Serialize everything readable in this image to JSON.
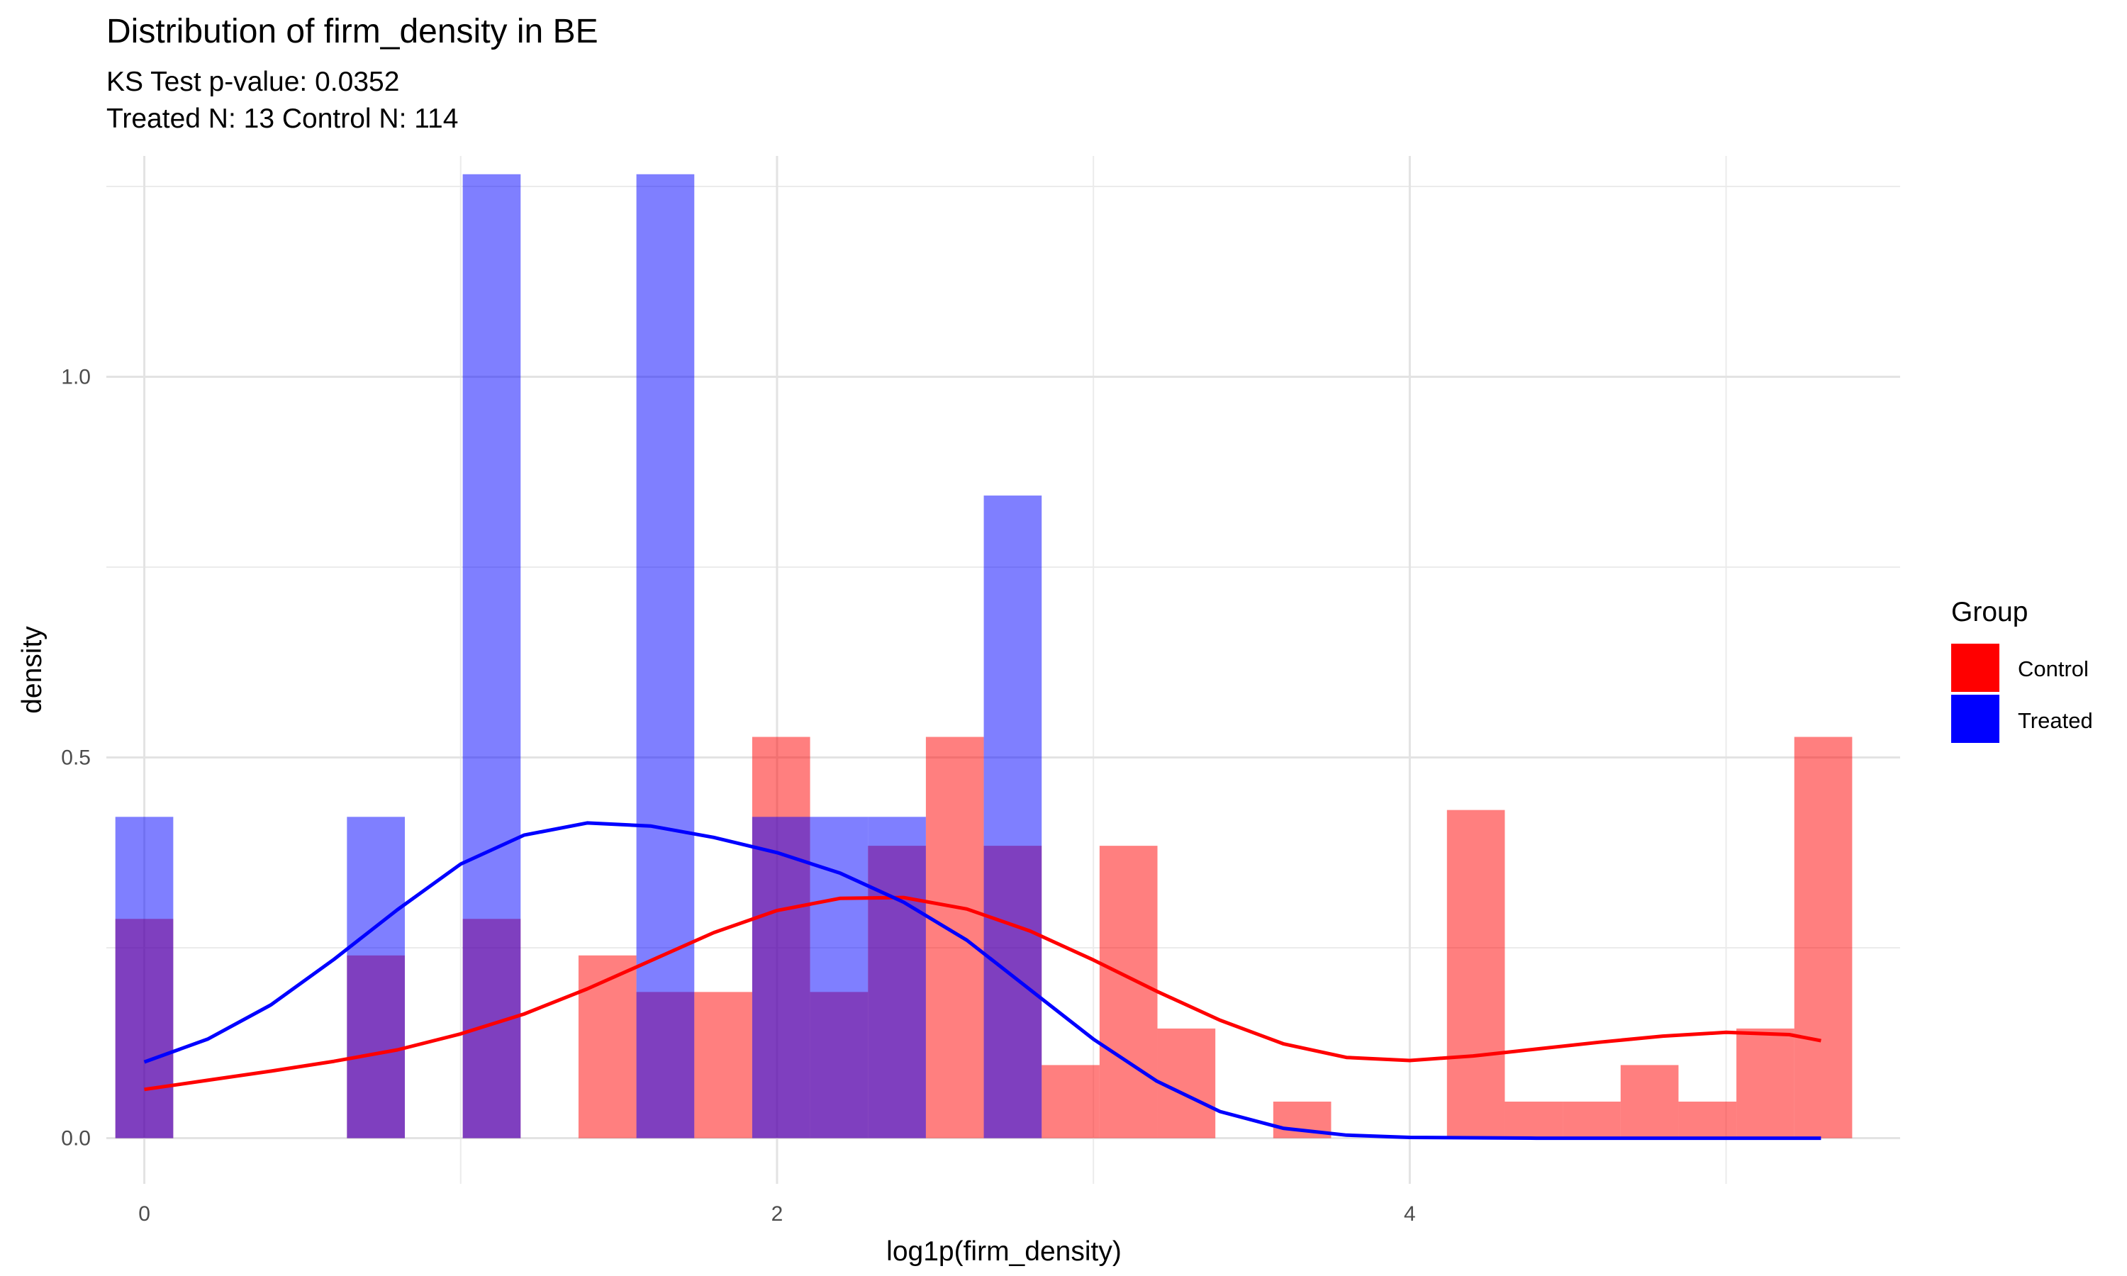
{
  "chart_data": {
    "type": "histogram",
    "title": "Distribution of firm_density in BE",
    "subtitle_lines": [
      "KS Test p-value: 0.0352",
      "Treated N: 13 Control N: 114"
    ],
    "xlabel": "log1p(firm_density)",
    "ylabel": "density",
    "xlim": [
      -0.12,
      5.55
    ],
    "ylim": [
      -0.06,
      1.29
    ],
    "x_ticks": [
      0,
      2,
      4
    ],
    "x_tick_labels": [
      "0",
      "2",
      "4"
    ],
    "y_ticks": [
      0.0,
      0.5,
      1.0
    ],
    "y_tick_labels": [
      "0.0",
      "0.5",
      "1.0"
    ],
    "x_minor_ticks": [
      1,
      3,
      5
    ],
    "y_minor_ticks": [
      0.25,
      0.75,
      1.25
    ],
    "grid": true,
    "bin_width": 0.183,
    "legend": {
      "title": "Group",
      "position": "right",
      "items": [
        {
          "label": "Control",
          "color": "#ff0000"
        },
        {
          "label": "Treated",
          "color": "#0000ff"
        }
      ]
    },
    "series": [
      {
        "name": "Control",
        "color": "#ff0000",
        "bins": [
          {
            "x": 0.0,
            "y": 0.288
          },
          {
            "x": 0.732,
            "y": 0.24
          },
          {
            "x": 1.098,
            "y": 0.288
          },
          {
            "x": 1.464,
            "y": 0.24
          },
          {
            "x": 1.647,
            "y": 0.192
          },
          {
            "x": 1.83,
            "y": 0.192
          },
          {
            "x": 2.013,
            "y": 0.527
          },
          {
            "x": 2.196,
            "y": 0.192
          },
          {
            "x": 2.379,
            "y": 0.384
          },
          {
            "x": 2.562,
            "y": 0.527
          },
          {
            "x": 2.745,
            "y": 0.384
          },
          {
            "x": 2.928,
            "y": 0.096
          },
          {
            "x": 3.111,
            "y": 0.384
          },
          {
            "x": 3.294,
            "y": 0.144
          },
          {
            "x": 3.66,
            "y": 0.048
          },
          {
            "x": 4.209,
            "y": 0.431
          },
          {
            "x": 4.392,
            "y": 0.048
          },
          {
            "x": 4.575,
            "y": 0.048
          },
          {
            "x": 4.758,
            "y": 0.096
          },
          {
            "x": 4.941,
            "y": 0.048
          },
          {
            "x": 5.124,
            "y": 0.144
          },
          {
            "x": 5.307,
            "y": 0.527
          }
        ],
        "density_curve": {
          "x": [
            0.0,
            0.2,
            0.4,
            0.6,
            0.8,
            1.0,
            1.2,
            1.4,
            1.6,
            1.8,
            2.0,
            2.2,
            2.4,
            2.6,
            2.8,
            3.0,
            3.2,
            3.4,
            3.6,
            3.8,
            4.0,
            4.2,
            4.4,
            4.6,
            4.8,
            5.0,
            5.2,
            5.3
          ],
          "y": [
            0.064,
            0.076,
            0.088,
            0.101,
            0.116,
            0.137,
            0.163,
            0.196,
            0.233,
            0.27,
            0.299,
            0.315,
            0.316,
            0.301,
            0.272,
            0.234,
            0.193,
            0.155,
            0.124,
            0.106,
            0.102,
            0.108,
            0.117,
            0.126,
            0.134,
            0.139,
            0.136,
            0.128
          ]
        }
      },
      {
        "name": "Treated",
        "color": "#0000ff",
        "bins": [
          {
            "x": 0.0,
            "y": 0.422
          },
          {
            "x": 0.732,
            "y": 0.422
          },
          {
            "x": 1.098,
            "y": 1.266
          },
          {
            "x": 1.647,
            "y": 1.266
          },
          {
            "x": 2.013,
            "y": 0.422
          },
          {
            "x": 2.196,
            "y": 0.422
          },
          {
            "x": 2.379,
            "y": 0.422
          },
          {
            "x": 2.745,
            "y": 0.844
          }
        ],
        "density_curve": {
          "x": [
            0.0,
            0.2,
            0.4,
            0.6,
            0.8,
            1.0,
            1.2,
            1.4,
            1.6,
            1.8,
            2.0,
            2.2,
            2.4,
            2.6,
            2.8,
            3.0,
            3.2,
            3.4,
            3.6,
            3.8,
            4.0,
            4.4,
            4.8,
            5.3
          ],
          "y": [
            0.1,
            0.13,
            0.175,
            0.235,
            0.3,
            0.36,
            0.398,
            0.414,
            0.41,
            0.395,
            0.375,
            0.348,
            0.31,
            0.26,
            0.195,
            0.13,
            0.075,
            0.035,
            0.013,
            0.004,
            0.001,
            0.0,
            0.0,
            0.0
          ]
        }
      }
    ]
  }
}
